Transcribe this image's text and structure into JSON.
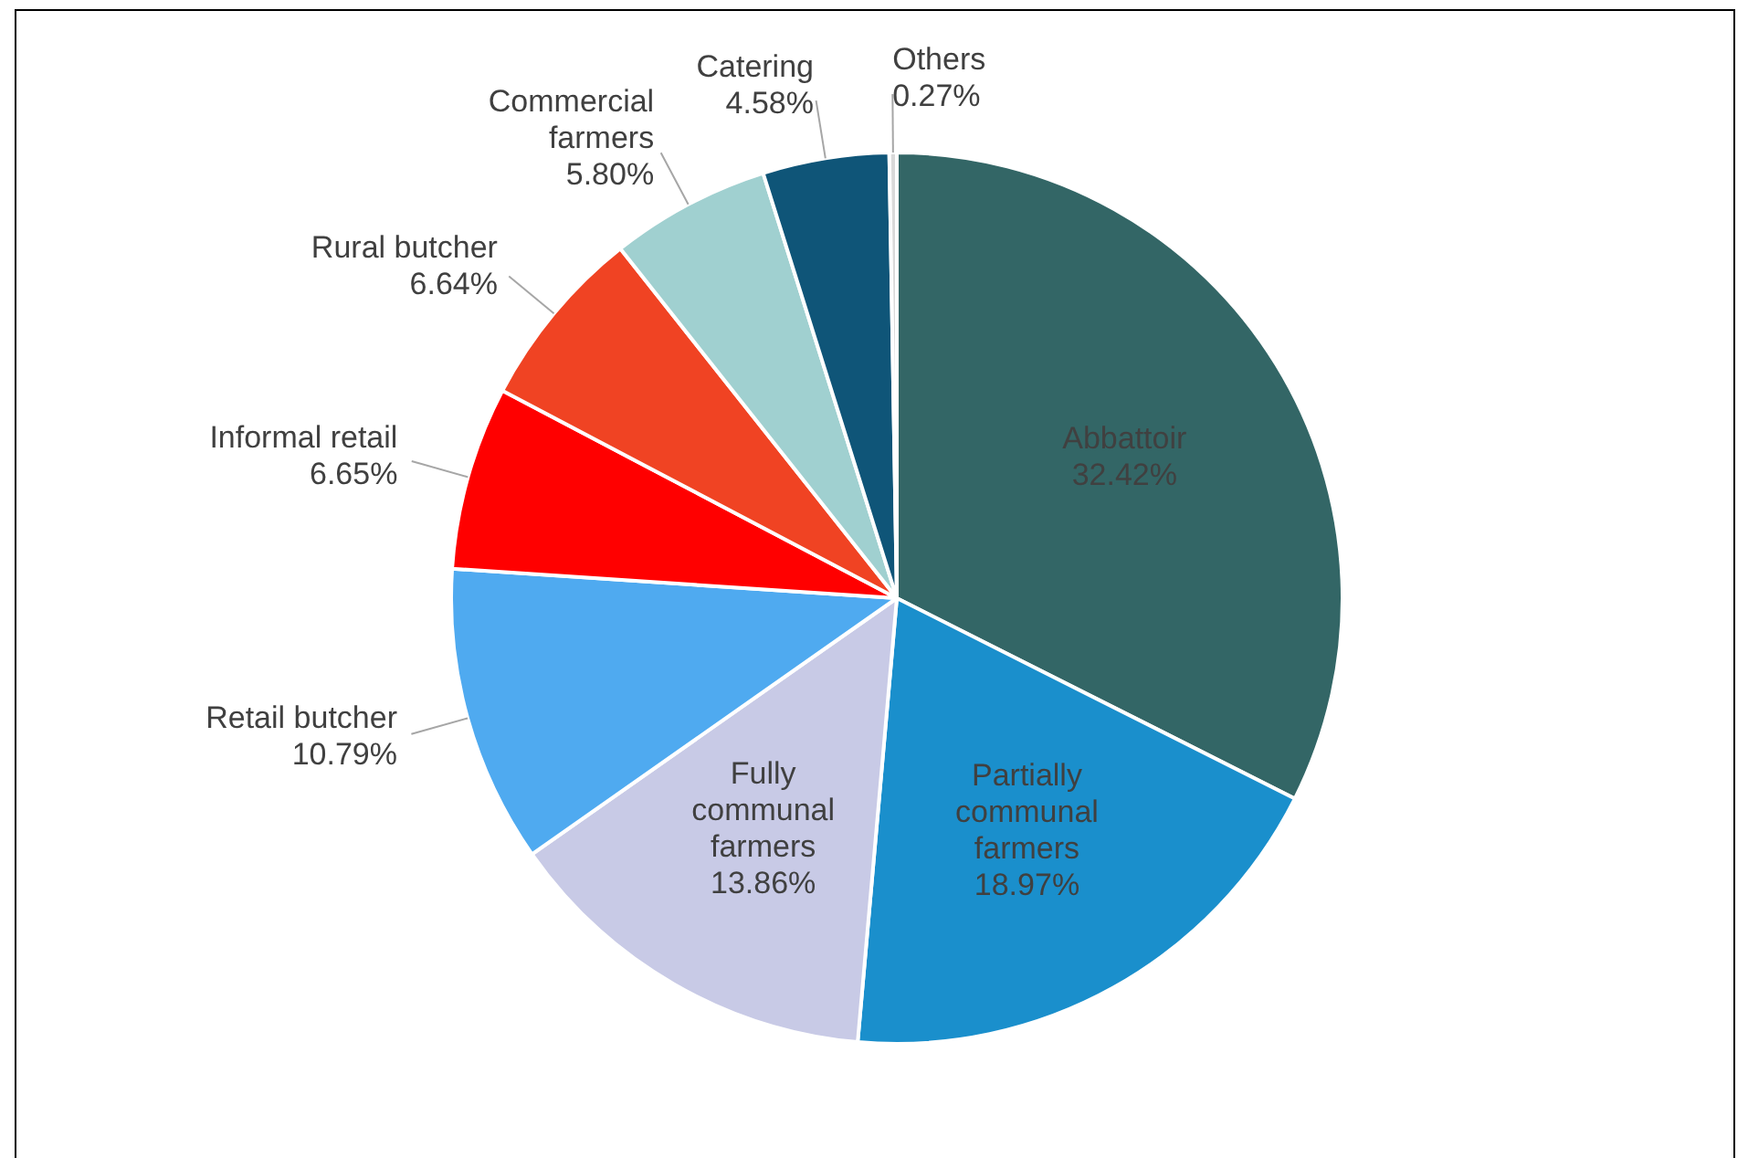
{
  "chart_data": {
    "type": "pie",
    "categories": [
      "Abbattoir",
      "Partially communal farmers",
      "Fully communal farmers",
      "Retail butcher",
      "Informal retail",
      "Rural butcher",
      "Commercial farmers",
      "Catering",
      "Others"
    ],
    "values": [
      32.42,
      18.97,
      13.86,
      10.79,
      6.65,
      6.64,
      5.8,
      4.58,
      0.27
    ],
    "value_labels": [
      "32.42%",
      "18.97%",
      "13.86%",
      "10.79%",
      "6.65%",
      "6.64%",
      "5.80%",
      "4.58%",
      "0.27%"
    ],
    "colors": [
      "#336666",
      "#1a8fcc",
      "#c8cae6",
      "#4faaf0",
      "#ff0000",
      "#f04323",
      "#a0d0d0",
      "#0f5578",
      "#d9d9d9"
    ],
    "legend": false
  }
}
